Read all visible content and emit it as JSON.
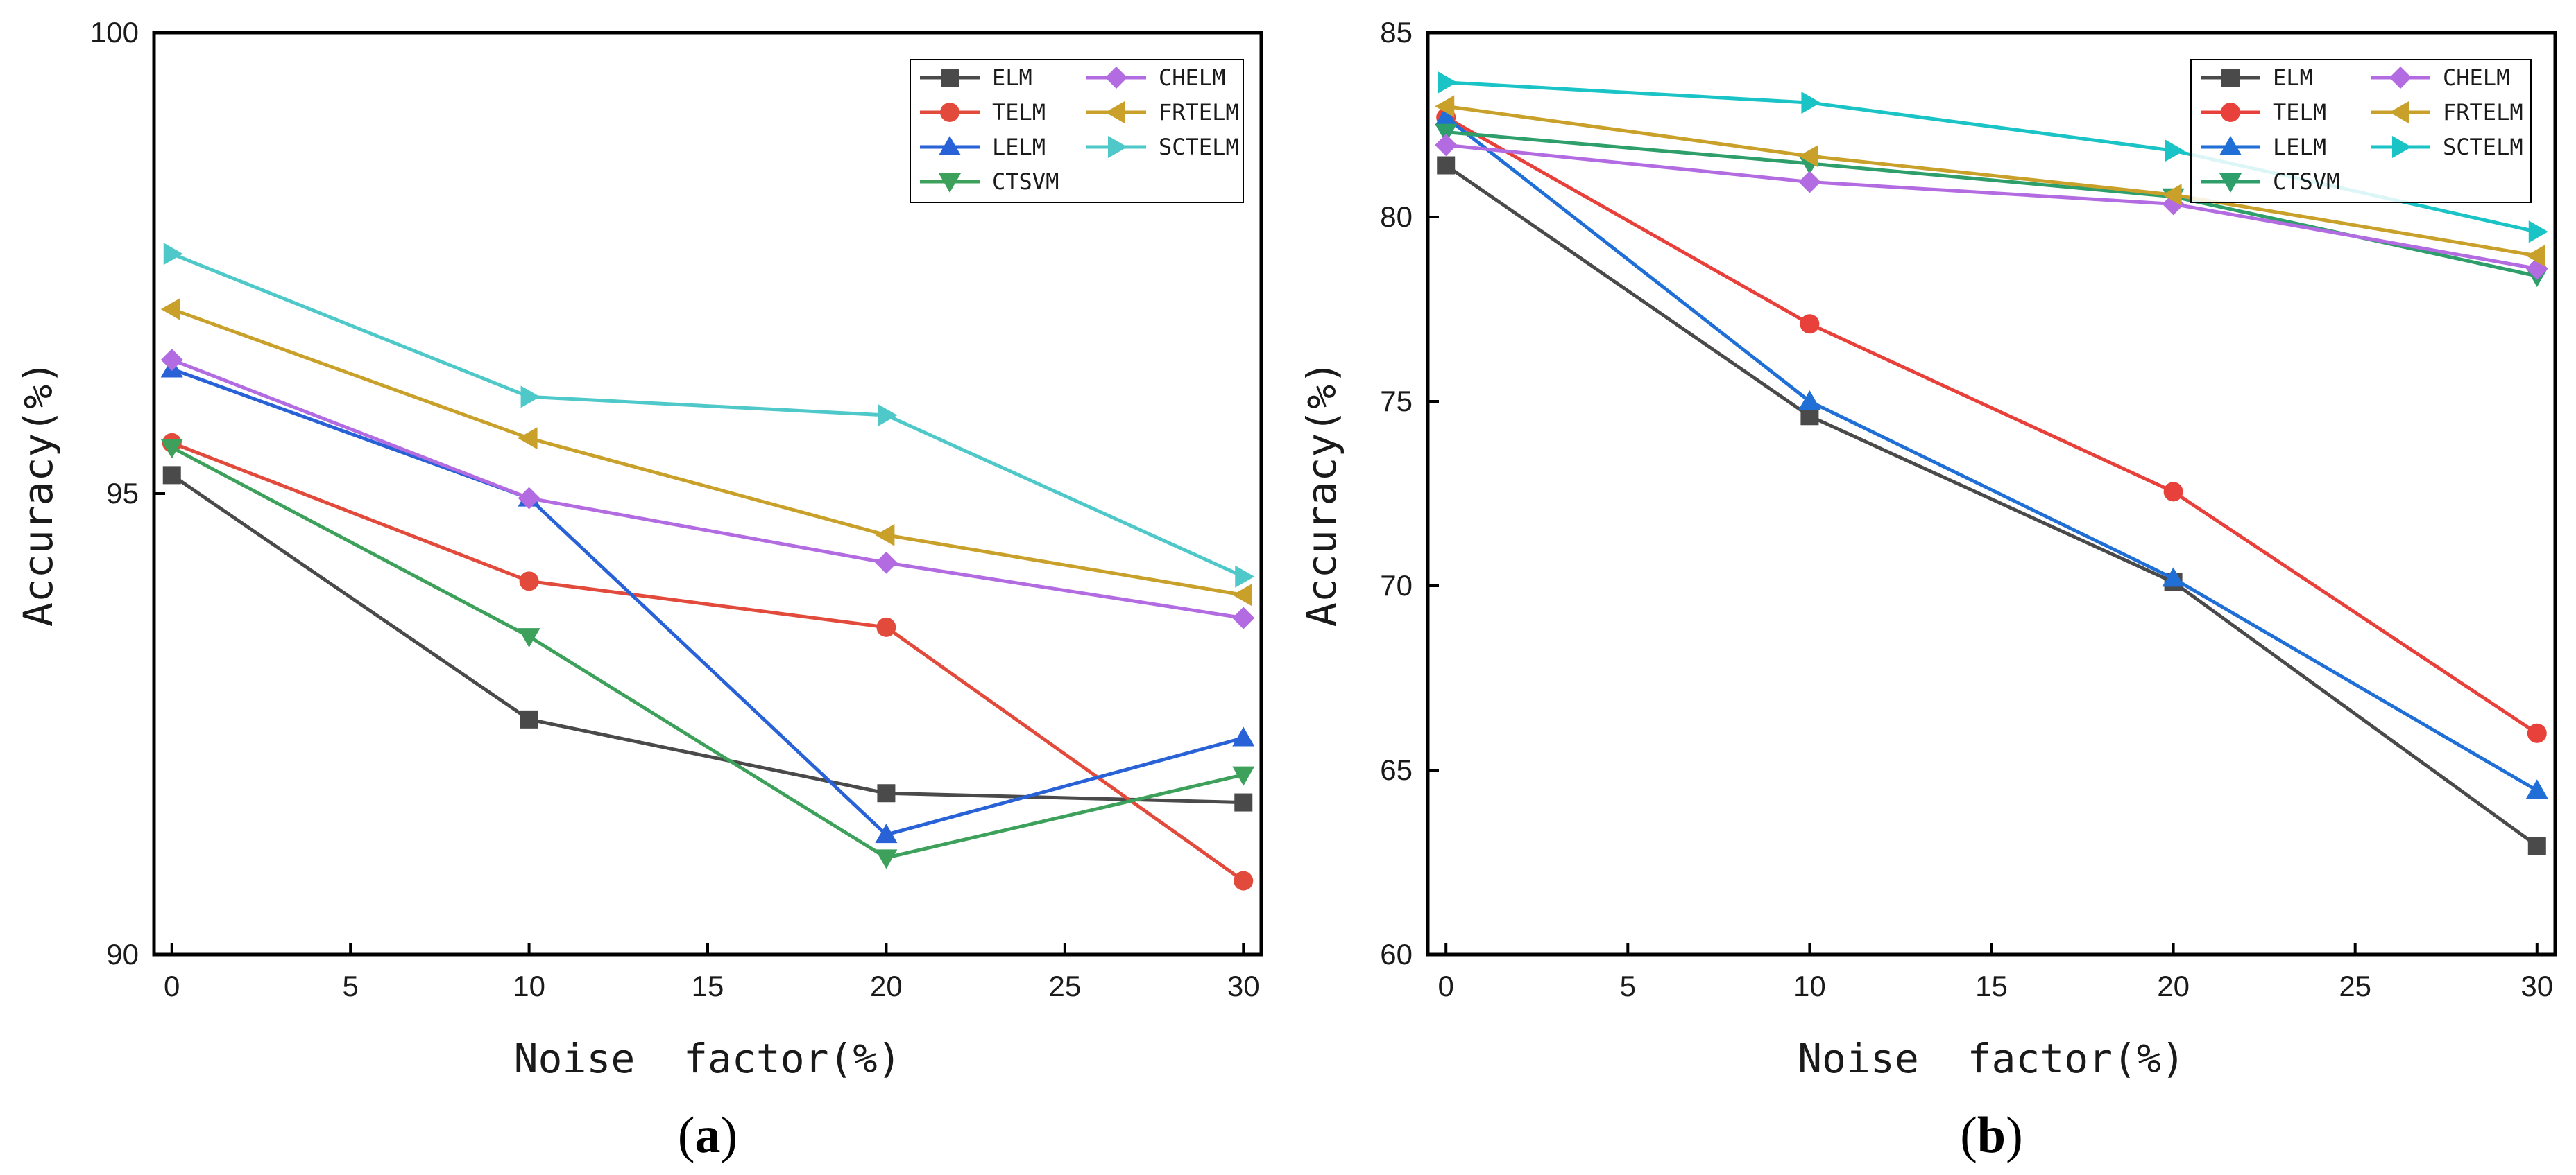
{
  "chart_data": [
    {
      "type": "line",
      "panel_label": "(a)",
      "panel_letter": "a",
      "xlabel": "Noise  factor(%)",
      "ylabel": "Accuracy(%)",
      "xlim": [
        -0.5,
        30.5
      ],
      "ylim": [
        90,
        100
      ],
      "xticks": [
        0,
        5,
        10,
        15,
        20,
        25,
        30
      ],
      "yticks": [
        90,
        95,
        100
      ],
      "x": [
        0,
        10,
        20,
        30
      ],
      "legend_position": "top-right",
      "grid": false,
      "series": [
        {
          "name": "ELM",
          "color": "#4a4a4a",
          "marker": "square",
          "values": [
            95.2,
            92.55,
            91.75,
            91.65
          ]
        },
        {
          "name": "TELM",
          "color": "#e24a3b",
          "marker": "circle",
          "values": [
            95.55,
            94.05,
            93.55,
            90.8
          ]
        },
        {
          "name": "LELM",
          "color": "#2862d6",
          "marker": "triangle-up",
          "values": [
            96.35,
            94.95,
            91.3,
            92.35
          ]
        },
        {
          "name": "CTSVM",
          "color": "#3da15b",
          "marker": "triangle-down",
          "values": [
            95.5,
            93.45,
            91.05,
            91.95
          ]
        },
        {
          "name": "CHELM",
          "color": "#b26be0",
          "marker": "diamond",
          "values": [
            96.45,
            94.95,
            94.25,
            93.65
          ]
        },
        {
          "name": "FRTELM",
          "color": "#c9a12a",
          "marker": "triangle-left",
          "values": [
            97.0,
            95.6,
            94.55,
            93.9
          ]
        },
        {
          "name": "SCTELM",
          "color": "#4ec8c8",
          "marker": "triangle-right",
          "values": [
            97.6,
            96.05,
            95.85,
            94.1
          ]
        }
      ]
    },
    {
      "type": "line",
      "panel_label": "(b)",
      "panel_letter": "b",
      "xlabel": "Noise  factor(%)",
      "ylabel": "Accuracy(%)",
      "xlim": [
        -0.5,
        30.5
      ],
      "ylim": [
        60,
        85
      ],
      "xticks": [
        0,
        5,
        10,
        15,
        20,
        25,
        30
      ],
      "yticks": [
        60,
        65,
        70,
        75,
        80,
        85
      ],
      "x": [
        0,
        10,
        20,
        30
      ],
      "legend_position": "top-right",
      "grid": false,
      "series": [
        {
          "name": "ELM",
          "color": "#4a4a4a",
          "marker": "square",
          "values": [
            81.4,
            74.6,
            70.1,
            62.95
          ]
        },
        {
          "name": "TELM",
          "color": "#e8403a",
          "marker": "circle",
          "values": [
            82.7,
            77.1,
            72.55,
            66.0
          ]
        },
        {
          "name": "LELM",
          "color": "#1f6fd6",
          "marker": "triangle-up",
          "values": [
            82.7,
            75.0,
            70.2,
            64.45
          ]
        },
        {
          "name": "CTSVM",
          "color": "#2e9e6a",
          "marker": "triangle-down",
          "values": [
            82.3,
            81.45,
            80.55,
            78.4
          ]
        },
        {
          "name": "CHELM",
          "color": "#b26be0",
          "marker": "diamond",
          "values": [
            81.95,
            80.95,
            80.35,
            78.6
          ]
        },
        {
          "name": "FRTELM",
          "color": "#c9a12a",
          "marker": "triangle-left",
          "values": [
            83.0,
            81.65,
            80.6,
            78.95
          ]
        },
        {
          "name": "SCTELM",
          "color": "#19c3c6",
          "marker": "triangle-right",
          "values": [
            83.65,
            83.1,
            81.8,
            79.6
          ]
        }
      ]
    }
  ]
}
